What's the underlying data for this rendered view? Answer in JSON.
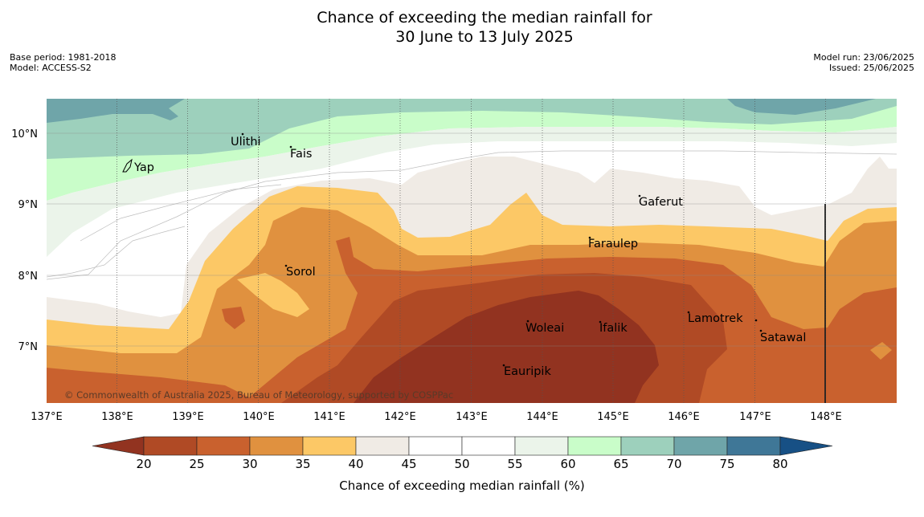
{
  "title_line1": "Chance of exceeding the median rainfall for",
  "title_line2": "30 June to 13 July 2025",
  "meta_left": [
    "Base period: 1981-2018",
    "Model: ACCESS-S2"
  ],
  "meta_right": [
    "Model run: 23/06/2025",
    "Issued: 25/06/2025"
  ],
  "copyright": "© Commonwealth of Australia 2025, Bureau of Meteorology, supported by COSPPac",
  "places": [
    "Yap",
    "Ulithi",
    "Fais",
    "Gaferut",
    "Faraulep",
    "Sorol",
    "Woleai",
    "Ifalik",
    "Lamotrek",
    "Satawal",
    "Eauripik"
  ],
  "lat_labels": [
    "10°N",
    "9°N",
    "8°N",
    "7°N"
  ],
  "lon_labels": [
    "137°E",
    "138°E",
    "139°E",
    "140°E",
    "141°E",
    "142°E",
    "143°E",
    "144°E",
    "145°E",
    "146°E",
    "147°E",
    "148°E"
  ],
  "colorbar": {
    "ticks": [
      "20",
      "25",
      "30",
      "35",
      "40",
      "45",
      "50",
      "55",
      "60",
      "65",
      "70",
      "75",
      "80"
    ],
    "colors": [
      "#923320",
      "#b04a25",
      "#c9612e",
      "#e0913f",
      "#fcc866",
      "#f0ebe5",
      "#ffffff",
      "#ffffff",
      "#ebf4ea",
      "#c9fdc9",
      "#9dd0bc",
      "#6fa5a9",
      "#3f7797",
      "#175085"
    ],
    "label": "Chance of exceeding median rainfall (%)"
  }
}
